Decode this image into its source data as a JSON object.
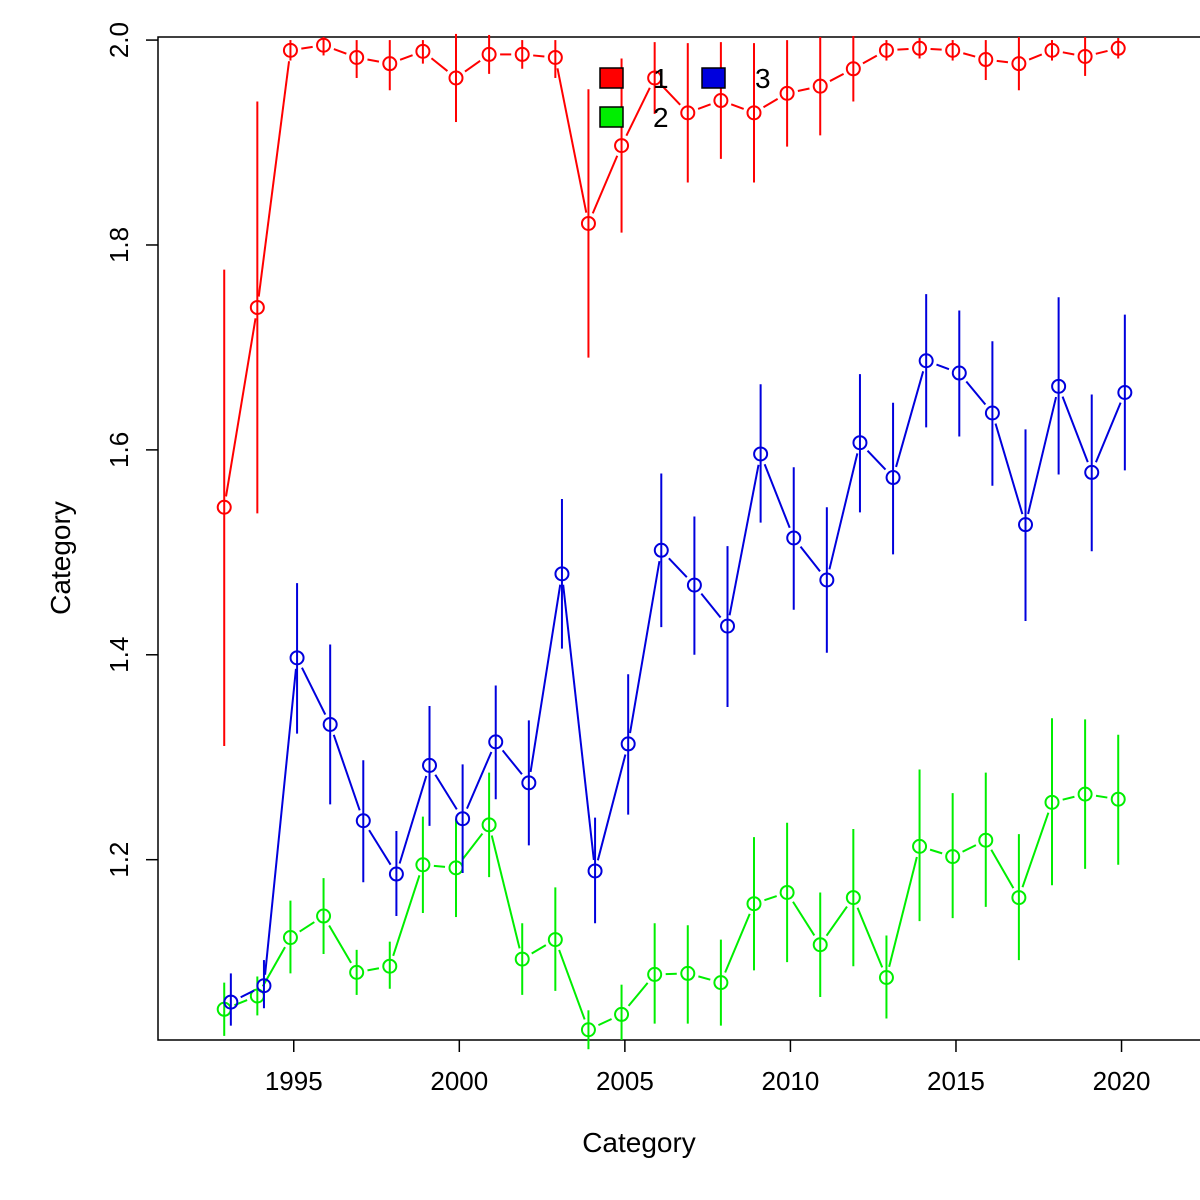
{
  "chart_data": {
    "type": "line",
    "title": "",
    "xlabel": "Category",
    "ylabel": "Category",
    "xlim": [
      1990.9,
      2022.4
    ],
    "ylim": [
      1.024,
      2.003
    ],
    "x_ticks": [
      1995,
      2000,
      2005,
      2010,
      2015,
      2020
    ],
    "y_ticks": [
      1.2,
      1.4,
      1.6,
      1.8,
      2.0
    ],
    "x_tick_labels": [
      "1995",
      "2000",
      "2005",
      "2010",
      "2015",
      "2020"
    ],
    "y_tick_labels": [
      "1.2",
      "1.4",
      "1.6",
      "1.8",
      "2.0"
    ],
    "grid": false,
    "legend": {
      "position": "top-center",
      "entries": [
        "1",
        "2",
        "3"
      ]
    },
    "series": [
      {
        "name": "1",
        "color": "#ff0000",
        "x_offset": -0.1,
        "x": [
          1993,
          1994,
          1995,
          1996,
          1997,
          1998,
          1999,
          2000,
          2001,
          2002,
          2003,
          2004,
          2005,
          2006,
          2007,
          2008,
          2009,
          2010,
          2011,
          2012,
          2013,
          2014,
          2015,
          2016,
          2017,
          2018,
          2019,
          2020
        ],
        "y": [
          1.544,
          1.739,
          1.99,
          1.995,
          1.983,
          1.977,
          1.989,
          1.963,
          1.986,
          1.986,
          1.983,
          1.821,
          1.897,
          1.963,
          1.929,
          1.941,
          1.929,
          1.948,
          1.955,
          1.972,
          1.99,
          1.992,
          1.99,
          1.981,
          1.977,
          1.99,
          1.984,
          1.992
        ],
        "lower": [
          1.311,
          1.538,
          1.98,
          1.985,
          1.963,
          1.951,
          1.977,
          1.92,
          1.967,
          1.972,
          1.963,
          1.69,
          1.812,
          1.928,
          1.861,
          1.884,
          1.861,
          1.896,
          1.907,
          1.94,
          1.98,
          1.982,
          1.98,
          1.961,
          1.951,
          1.98,
          1.965,
          1.982
        ],
        "upper": [
          1.776,
          1.94,
          2.0,
          2.003,
          2.0,
          2.0,
          2.0,
          2.006,
          2.005,
          2.0,
          2.0,
          1.952,
          1.982,
          1.998,
          1.997,
          1.998,
          1.997,
          2.0,
          2.003,
          2.004,
          2.0,
          2.002,
          2.0,
          2.0,
          2.003,
          2.0,
          2.003,
          2.002
        ]
      },
      {
        "name": "2",
        "color": "#00ee00",
        "x_offset": -0.1,
        "x": [
          1993,
          1994,
          1995,
          1996,
          1997,
          1998,
          1999,
          2000,
          2001,
          2002,
          2003,
          2004,
          2005,
          2006,
          2007,
          2008,
          2009,
          2010,
          2011,
          2012,
          2013,
          2014,
          2015,
          2016,
          2017,
          2018,
          2019,
          2020
        ],
        "y": [
          1.054,
          1.067,
          1.124,
          1.145,
          1.09,
          1.096,
          1.195,
          1.192,
          1.234,
          1.103,
          1.122,
          1.034,
          1.049,
          1.088,
          1.089,
          1.08,
          1.157,
          1.168,
          1.117,
          1.163,
          1.085,
          1.213,
          1.203,
          1.219,
          1.163,
          1.256,
          1.264,
          1.259
        ],
        "lower": [
          1.028,
          1.048,
          1.089,
          1.108,
          1.068,
          1.074,
          1.148,
          1.144,
          1.183,
          1.068,
          1.072,
          1.015,
          1.024,
          1.04,
          1.04,
          1.038,
          1.092,
          1.1,
          1.066,
          1.096,
          1.045,
          1.14,
          1.143,
          1.154,
          1.102,
          1.175,
          1.191,
          1.195
        ],
        "upper": [
          1.08,
          1.086,
          1.16,
          1.182,
          1.112,
          1.12,
          1.242,
          1.24,
          1.285,
          1.138,
          1.173,
          1.053,
          1.078,
          1.138,
          1.136,
          1.122,
          1.222,
          1.236,
          1.168,
          1.23,
          1.126,
          1.288,
          1.265,
          1.285,
          1.225,
          1.338,
          1.337,
          1.322
        ]
      },
      {
        "name": "3",
        "color": "#0000dd",
        "x_offset": 0.1,
        "x": [
          1993,
          1994,
          1995,
          1996,
          1997,
          1998,
          1999,
          2000,
          2001,
          2002,
          2003,
          2004,
          2005,
          2006,
          2007,
          2008,
          2009,
          2010,
          2011,
          2012,
          2013,
          2014,
          2015,
          2016,
          2017,
          2018,
          2019,
          2020
        ],
        "y": [
          1.061,
          1.077,
          1.397,
          1.332,
          1.238,
          1.186,
          1.292,
          1.24,
          1.315,
          1.275,
          1.479,
          1.189,
          1.313,
          1.502,
          1.468,
          1.428,
          1.596,
          1.514,
          1.473,
          1.607,
          1.573,
          1.687,
          1.675,
          1.636,
          1.527,
          1.662,
          1.578,
          1.656
        ],
        "lower": [
          1.038,
          1.055,
          1.323,
          1.254,
          1.178,
          1.145,
          1.233,
          1.187,
          1.259,
          1.214,
          1.406,
          1.138,
          1.244,
          1.427,
          1.4,
          1.349,
          1.529,
          1.444,
          1.402,
          1.539,
          1.498,
          1.622,
          1.613,
          1.565,
          1.433,
          1.576,
          1.501,
          1.58
        ],
        "upper": [
          1.089,
          1.102,
          1.47,
          1.41,
          1.297,
          1.228,
          1.35,
          1.293,
          1.37,
          1.336,
          1.552,
          1.241,
          1.381,
          1.577,
          1.535,
          1.506,
          1.664,
          1.583,
          1.544,
          1.674,
          1.646,
          1.752,
          1.736,
          1.706,
          1.62,
          1.749,
          1.654,
          1.732
        ]
      }
    ]
  }
}
